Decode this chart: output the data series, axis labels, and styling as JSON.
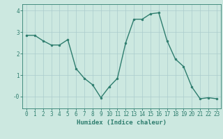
{
  "x": [
    0,
    1,
    2,
    3,
    4,
    5,
    6,
    7,
    8,
    9,
    10,
    11,
    12,
    13,
    14,
    15,
    16,
    17,
    18,
    19,
    20,
    21,
    22,
    23
  ],
  "y": [
    2.85,
    2.85,
    2.6,
    2.4,
    2.4,
    2.65,
    1.3,
    0.85,
    0.55,
    -0.05,
    0.45,
    0.85,
    2.5,
    3.6,
    3.6,
    3.85,
    3.9,
    2.6,
    1.75,
    1.4,
    0.45,
    -0.1,
    -0.05,
    -0.1
  ],
  "line_color": "#2e7d6e",
  "marker": "o",
  "markersize": 2.0,
  "linewidth": 1.0,
  "xlabel": "Humidex (Indice chaleur)",
  "xlabel_fontsize": 6.5,
  "xlim": [
    -0.5,
    23.5
  ],
  "ylim": [
    -0.55,
    4.3
  ],
  "xticks": [
    0,
    1,
    2,
    3,
    4,
    5,
    6,
    7,
    8,
    9,
    10,
    11,
    12,
    13,
    14,
    15,
    16,
    17,
    18,
    19,
    20,
    21,
    22,
    23
  ],
  "yticks": [
    0,
    1,
    2,
    3,
    4
  ],
  "ytick_labels": [
    "-0",
    "1",
    "2",
    "3",
    "4"
  ],
  "bg_color": "#cce8e0",
  "grid_color": "#aacccc",
  "grid_linewidth": 0.5,
  "tick_fontsize": 5.5
}
